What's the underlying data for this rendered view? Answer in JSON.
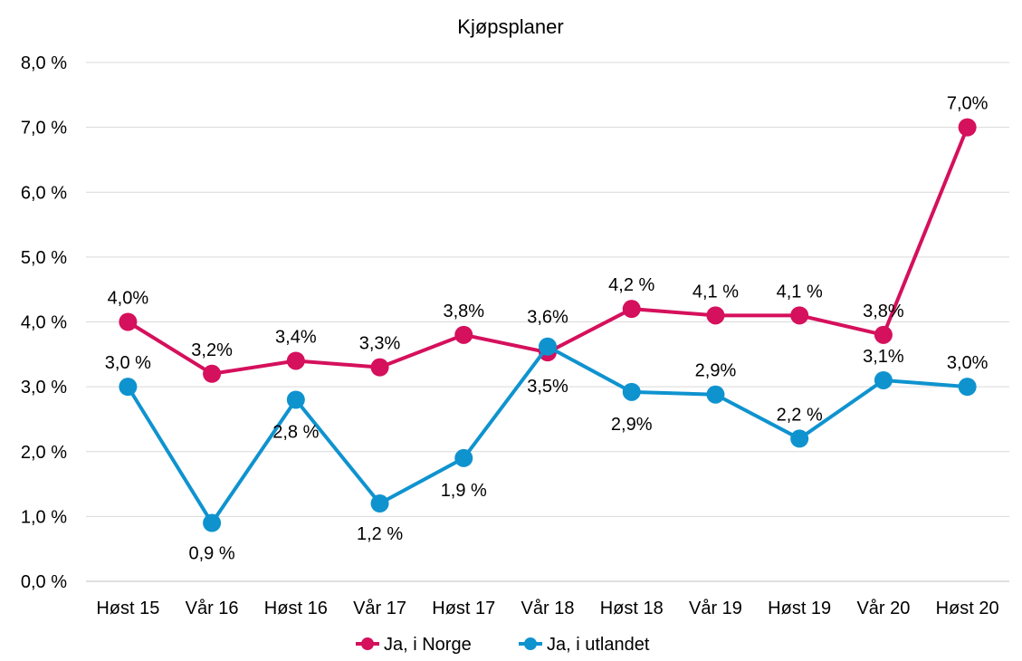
{
  "chart_data": {
    "type": "line",
    "title": "Kjøpsplaner",
    "xlabel": "",
    "ylabel": "",
    "categories": [
      "Høst 15",
      "Vår 16",
      "Høst 16",
      "Vår 17",
      "Høst 17",
      "Vår 18",
      "Høst 18",
      "Vår 19",
      "Høst 19",
      "Vår 20",
      "Høst 20"
    ],
    "y_ticks": [
      "0,0 %",
      "1,0 %",
      "2,0 %",
      "3,0 %",
      "4,0 %",
      "5,0 %",
      "6,0 %",
      "7,0 %",
      "8,0 %"
    ],
    "ylim": [
      0,
      8
    ],
    "grid": true,
    "legend_position": "bottom",
    "series": [
      {
        "name": "Ja, i Norge",
        "color": "#D5105C",
        "values": [
          4.0,
          3.2,
          3.4,
          3.3,
          3.8,
          3.53,
          4.2,
          4.1,
          4.1,
          3.8,
          7.0
        ],
        "labels": [
          "4,0%",
          "3,2%",
          "3,4%",
          "3,3%",
          "3,8%",
          "3,5%",
          "4,2 %",
          "4,1 %",
          "4,1 %",
          "3,8%",
          "7,0%"
        ]
      },
      {
        "name": "Ja, i utlandet",
        "color": "#0F93CF",
        "values": [
          3.0,
          0.9,
          2.8,
          1.2,
          1.9,
          3.62,
          2.92,
          2.88,
          2.2,
          3.1,
          3.0
        ],
        "labels": [
          "3,0 %",
          "0,9 %",
          "2,8 %",
          "1,2 %",
          "1,9 %",
          "3,6%",
          "2,9%",
          "2,9%",
          "2,2 %",
          "3,1%",
          "3,0%"
        ]
      }
    ]
  }
}
